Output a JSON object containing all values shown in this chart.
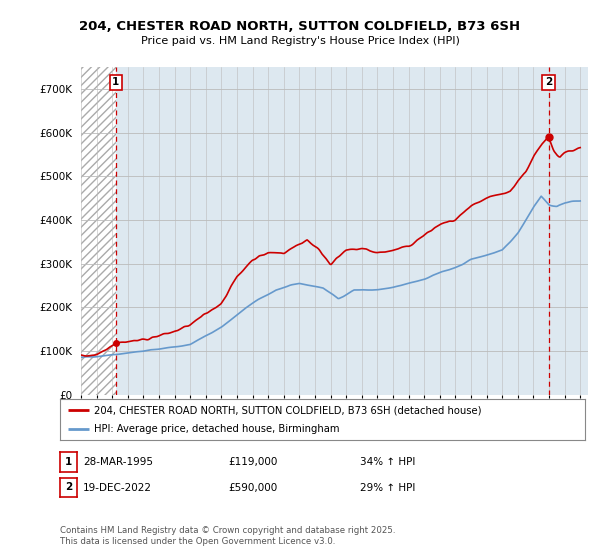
{
  "title": "204, CHESTER ROAD NORTH, SUTTON COLDFIELD, B73 6SH",
  "subtitle": "Price paid vs. HM Land Registry's House Price Index (HPI)",
  "ylim": [
    0,
    750000
  ],
  "yticks": [
    0,
    100000,
    200000,
    300000,
    400000,
    500000,
    600000,
    700000
  ],
  "ytick_labels": [
    "£0",
    "£100K",
    "£200K",
    "£300K",
    "£400K",
    "£500K",
    "£600K",
    "£700K"
  ],
  "legend_line1": "204, CHESTER ROAD NORTH, SUTTON COLDFIELD, B73 6SH (detached house)",
  "legend_line2": "HPI: Average price, detached house, Birmingham",
  "annotation1_label": "1",
  "annotation1_date": "28-MAR-1995",
  "annotation1_price": "£119,000",
  "annotation1_hpi": "34% ↑ HPI",
  "annotation2_label": "2",
  "annotation2_date": "19-DEC-2022",
  "annotation2_price": "£590,000",
  "annotation2_hpi": "29% ↑ HPI",
  "footer": "Contains HM Land Registry data © Crown copyright and database right 2025.\nThis data is licensed under the Open Government Licence v3.0.",
  "line_color_property": "#cc0000",
  "line_color_hpi": "#6699cc",
  "background_color": "#ffffff",
  "plot_bg_color": "#dde8f0",
  "hatch_region_end": 1995.23,
  "purchase1_year": 1995.23,
  "purchase1_price": 119000,
  "purchase2_year": 2022.97,
  "purchase2_price": 590000,
  "xmin": 1993,
  "xmax": 2025.5
}
